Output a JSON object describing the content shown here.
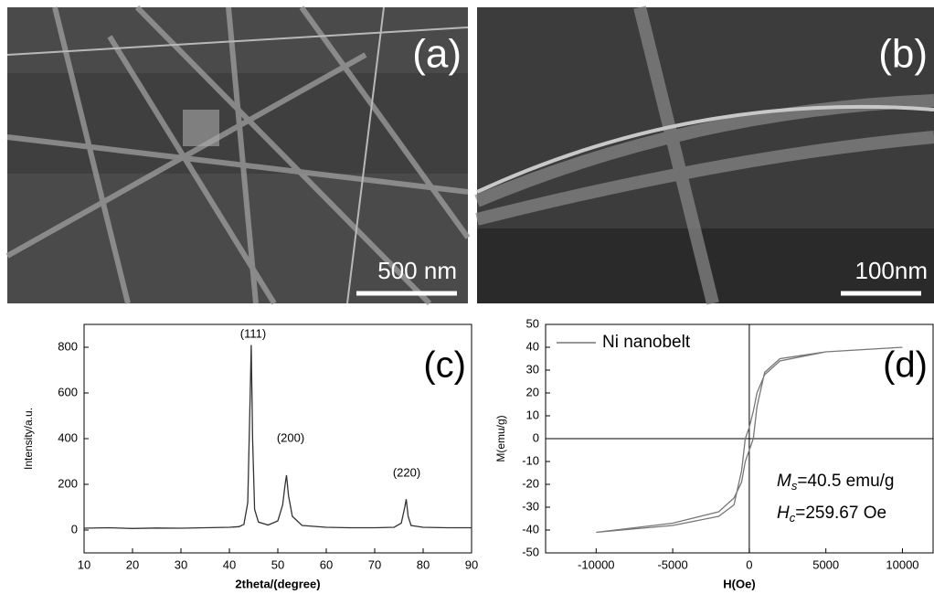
{
  "panels": [
    {
      "label": "(a)",
      "scale_bar": "500 nm"
    },
    {
      "label": "(b)",
      "scale_bar": "100nm"
    }
  ],
  "chart_data": [
    {
      "type": "line",
      "panel_label": "(c)",
      "x_label": "2theta/(degree)",
      "y_label": "Intensity/a.u.",
      "xlim": [
        10,
        90
      ],
      "xticks": [
        10,
        20,
        30,
        40,
        50,
        60,
        70,
        80,
        90
      ],
      "ylim": [
        -100,
        900
      ],
      "yticks": [
        0,
        200,
        400,
        600,
        800
      ],
      "annotations": [
        "(111)",
        "(200)",
        "(220)"
      ],
      "x": [
        10,
        15,
        20,
        25,
        30,
        35,
        40,
        42,
        43,
        43.8,
        44.3,
        44.5,
        44.8,
        45.2,
        46,
        48,
        50,
        51,
        51.5,
        51.8,
        52.2,
        53,
        55,
        60,
        65,
        70,
        74,
        75.5,
        76.2,
        76.5,
        76.9,
        77.5,
        80,
        85,
        90
      ],
      "series": [
        {
          "color": "#333333",
          "values": [
            8,
            10,
            7,
            9,
            8,
            10,
            12,
            15,
            25,
            120,
            600,
            810,
            400,
            90,
            35,
            22,
            40,
            110,
            200,
            240,
            150,
            60,
            20,
            12,
            10,
            10,
            12,
            30,
            100,
            135,
            60,
            20,
            12,
            10,
            10
          ]
        }
      ]
    },
    {
      "type": "line",
      "panel_label": "(d)",
      "x_label": "H(Oe)",
      "y_label": "M(emu/g)",
      "xlim": [
        -13300,
        12000
      ],
      "xticks": [
        -10000,
        -5000,
        0,
        5000,
        10000
      ],
      "ylim": [
        -50,
        50
      ],
      "yticks": [
        -50,
        -40,
        -30,
        -20,
        -10,
        0,
        10,
        20,
        30,
        40,
        50
      ],
      "zero_lines": true,
      "legend": "upper left",
      "annotations": [
        [
          "M",
          "s",
          "=40.5 emu/g"
        ],
        [
          "H",
          "c",
          "=259.67 Oe"
        ]
      ],
      "x": [
        -10000,
        -5000,
        -2000,
        -1000,
        -500,
        -260,
        0,
        260,
        500,
        1000,
        2000,
        5000,
        10000,
        5000,
        2000,
        1000,
        500,
        260,
        0,
        -260,
        -500,
        -1000,
        -2000,
        -5000,
        -10000
      ],
      "series": [
        {
          "name": "Ni nanobelt",
          "color": "#777777",
          "values": [
            -41,
            -37,
            -32,
            -26,
            -19,
            -10,
            -5,
            0,
            14,
            29,
            35,
            38,
            40,
            38,
            34,
            28,
            20,
            12,
            5,
            0,
            -14,
            -29,
            -34,
            -38,
            -41
          ]
        }
      ]
    }
  ]
}
